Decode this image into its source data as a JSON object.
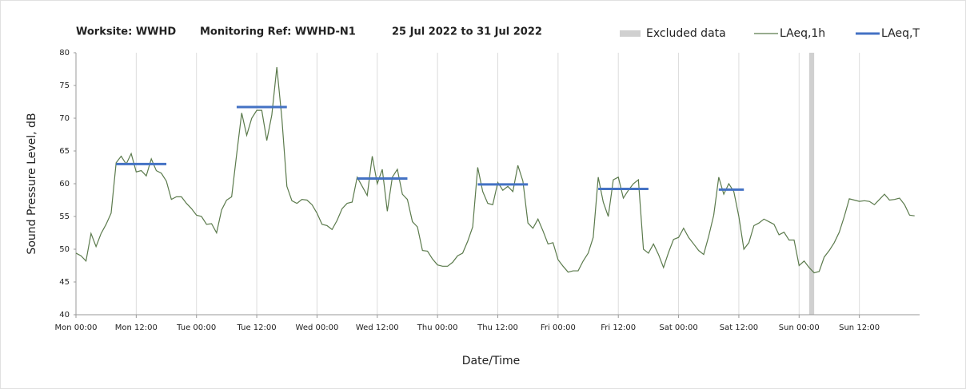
{
  "chart_data": {
    "type": "line",
    "title": {
      "worksite": "Worksite: WWHD",
      "monitoring_ref": "Monitoring Ref: WWHD-N1",
      "period": "25 Jul 2022 to 31 Jul 2022"
    },
    "xlabel": "Date/Time",
    "ylabel": "Sound Pressure Level, dB",
    "xlim": [
      0,
      168
    ],
    "ylim": [
      40,
      80
    ],
    "xticks": [
      {
        "value": 0,
        "label": "Mon 00:00"
      },
      {
        "value": 12,
        "label": "Mon 12:00"
      },
      {
        "value": 24,
        "label": "Tue 00:00"
      },
      {
        "value": 36,
        "label": "Tue 12:00"
      },
      {
        "value": 48,
        "label": "Wed 00:00"
      },
      {
        "value": 60,
        "label": "Wed 12:00"
      },
      {
        "value": 72,
        "label": "Thu 00:00"
      },
      {
        "value": 84,
        "label": "Thu 12:00"
      },
      {
        "value": 96,
        "label": "Fri 00:00"
      },
      {
        "value": 108,
        "label": "Fri 12:00"
      },
      {
        "value": 120,
        "label": "Sat 00:00"
      },
      {
        "value": 132,
        "label": "Sat 12:00"
      },
      {
        "value": 144,
        "label": "Sun 00:00"
      },
      {
        "value": 156,
        "label": "Sun 12:00"
      }
    ],
    "yticks": [
      40,
      45,
      50,
      55,
      60,
      65,
      70,
      75,
      80
    ],
    "grid": "x",
    "excluded": {
      "name": "Excluded data",
      "color": "#d0d0d0",
      "ranges": [
        [
          146,
          147
        ]
      ]
    },
    "x": [
      0,
      1,
      2,
      3,
      4,
      5,
      6,
      7,
      8,
      9,
      10,
      11,
      12,
      13,
      14,
      15,
      16,
      17,
      18,
      19,
      20,
      21,
      22,
      23,
      24,
      25,
      26,
      27,
      28,
      29,
      30,
      31,
      32,
      33,
      34,
      35,
      36,
      37,
      38,
      39,
      40,
      41,
      42,
      43,
      44,
      45,
      46,
      47,
      48,
      49,
      50,
      51,
      52,
      53,
      54,
      55,
      56,
      57,
      58,
      59,
      60,
      61,
      62,
      63,
      64,
      65,
      66,
      67,
      68,
      69,
      70,
      71,
      72,
      73,
      74,
      75,
      76,
      77,
      78,
      79,
      80,
      81,
      82,
      83,
      84,
      85,
      86,
      87,
      88,
      89,
      90,
      91,
      92,
      93,
      94,
      95,
      96,
      97,
      98,
      99,
      100,
      101,
      102,
      103,
      104,
      105,
      106,
      107,
      108,
      109,
      110,
      111,
      112,
      113,
      114,
      115,
      116,
      117,
      118,
      119,
      120,
      121,
      122,
      123,
      124,
      125,
      126,
      127,
      128,
      129,
      130,
      131,
      132,
      133,
      134,
      135,
      136,
      137,
      138,
      139,
      140,
      141,
      142,
      143,
      144,
      145,
      146,
      147,
      148,
      149,
      150,
      151,
      152,
      153,
      154,
      155,
      156,
      157,
      158,
      159,
      160,
      161,
      162,
      163,
      164,
      165,
      166,
      167
    ],
    "series": [
      {
        "name": "LAeq,1h",
        "color": "#5b7a4c",
        "values": [
          49.4,
          49,
          48.2,
          52.4,
          50.4,
          52.4,
          53.8,
          55.5,
          63.2,
          64.2,
          63,
          64.6,
          61.8,
          62,
          61.2,
          63.8,
          62,
          61.6,
          60.4,
          57.6,
          58,
          58,
          57,
          56.2,
          55.2,
          55,
          53.8,
          53.9,
          52.5,
          56,
          57.5,
          58,
          64.5,
          70.8,
          67.4,
          70,
          71.2,
          71.2,
          66.6,
          70.5,
          77.8,
          70,
          59.6,
          57.4,
          57,
          57.6,
          57.5,
          56.8,
          55.5,
          53.8,
          53.6,
          53,
          54.4,
          56.2,
          57,
          57.2,
          61,
          59.6,
          58.2,
          64.2,
          60,
          62.2,
          55.8,
          61,
          62.2,
          58.4,
          57.6,
          54.2,
          53.4,
          49.8,
          49.7,
          48.5,
          47.6,
          47.4,
          47.4,
          48,
          49,
          49.4,
          51.2,
          53.4,
          62.5,
          58.8,
          57,
          56.8,
          60.2,
          59,
          59.6,
          58.8,
          62.8,
          60.4,
          54,
          53.2,
          54.6,
          52.8,
          50.8,
          51,
          48.4,
          47.4,
          46.5,
          46.7,
          46.7,
          48.2,
          49.4,
          51.8,
          61,
          57.2,
          55,
          60.6,
          61,
          57.8,
          59,
          60,
          60.6,
          50,
          49.4,
          50.8,
          49.2,
          47.2,
          49.5,
          51.5,
          51.8,
          53.2,
          51.8,
          50.8,
          49.8,
          49.2,
          52,
          55.2,
          61,
          58.4,
          60,
          58.8,
          55,
          50,
          51,
          53.6,
          54,
          54.6,
          54.2,
          53.8,
          52.2,
          52.6,
          51.4,
          51.4,
          47.5,
          48.2,
          47.2,
          46.4,
          46.6,
          48.8,
          49.8,
          51,
          52.6,
          55,
          57.7,
          57.5,
          57.3,
          57.4,
          57.3,
          56.8,
          57.6,
          58.4,
          57.5,
          57.6,
          57.8,
          56.8,
          55.2,
          55.1
        ]
      },
      {
        "name": "LAeq,T",
        "color": "#4472c4",
        "segments": [
          {
            "x": [
              8,
              18
            ],
            "value": 63
          },
          {
            "x": [
              32,
              42
            ],
            "value": 71.7
          },
          {
            "x": [
              56,
              66
            ],
            "value": 60.8
          },
          {
            "x": [
              80,
              90
            ],
            "value": 59.9
          },
          {
            "x": [
              104,
              114
            ],
            "value": 59.2
          },
          {
            "x": [
              128,
              133
            ],
            "value": 59.1
          }
        ]
      }
    ]
  }
}
